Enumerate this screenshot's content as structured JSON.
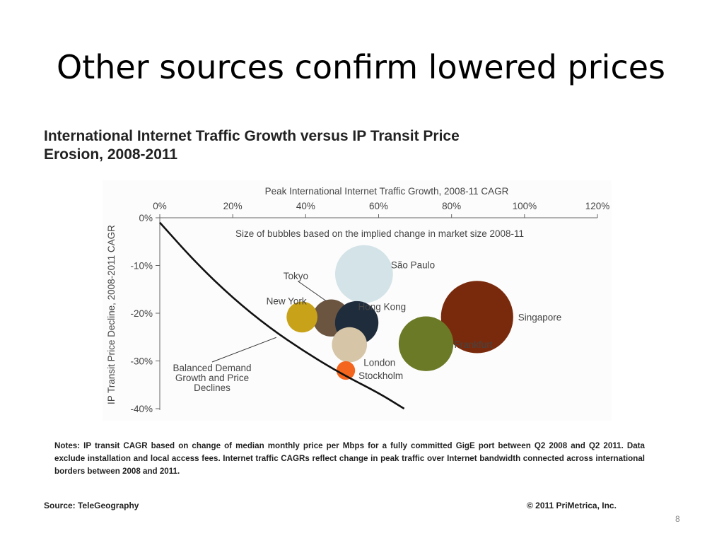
{
  "slide": {
    "title": "Other sources confirm lowered prices",
    "page_number": "8"
  },
  "figure": {
    "heading_line1": "International Internet Traffic Growth versus IP Transit Price",
    "heading_line2": "Erosion, 2008-2011",
    "notes": "Notes: IP transit CAGR based on change of median monthly price per Mbps for a fully committed GigE port between Q2 2008 and Q2 2011. Data exclude installation and local access fees. Internet traffic CAGRs reflect change in peak traffic over Internet bandwidth connected across international borders between 2008 and 2011.",
    "source": "Source: TeleGeography",
    "copyright": "© 2011 PriMetrica, Inc."
  },
  "chart_data": {
    "type": "scatter",
    "subtype": "bubble",
    "xlabel": "Peak International Internet Traffic Growth, 2008-11 CAGR",
    "ylabel": "IP Transit Price Decline, 2008-2011 CAGR",
    "xlim": [
      0,
      120
    ],
    "ylim": [
      -40,
      0
    ],
    "x_axis_position": "top",
    "x_ticks": [
      "0%",
      "20%",
      "40%",
      "60%",
      "80%",
      "100%",
      "120%"
    ],
    "x_tick_values": [
      0,
      20,
      40,
      60,
      80,
      100,
      120
    ],
    "y_ticks": [
      "0%",
      "-10%",
      "-20%",
      "-30%",
      "-40%"
    ],
    "y_tick_values": [
      0,
      -10,
      -20,
      -30,
      -40
    ],
    "grid": false,
    "annotation_size_note": "Size of bubbles based on the implied change in market size 2008-11",
    "points": [
      {
        "name": "São Paulo",
        "x": 56,
        "y": -11.8,
        "size": 5.6,
        "color": "#d3e3e7"
      },
      {
        "name": "Tokyo",
        "x": 47,
        "y": -21.0,
        "size": 3.6,
        "color": "#6b5540"
      },
      {
        "name": "New York",
        "x": 39,
        "y": -20.8,
        "size": 3.0,
        "color": "#c8a218"
      },
      {
        "name": "Hong Kong",
        "x": 54,
        "y": -22.0,
        "size": 4.2,
        "color": "#1f2c3b"
      },
      {
        "name": "Singapore",
        "x": 87,
        "y": -20.8,
        "size": 7.0,
        "color": "#7a2a0c"
      },
      {
        "name": "Frankfurt",
        "x": 73,
        "y": -26.4,
        "size": 5.3,
        "color": "#6b7a26"
      },
      {
        "name": "London",
        "x": 52,
        "y": -26.6,
        "size": 3.4,
        "color": "#d6c5a6"
      },
      {
        "name": "Stockholm",
        "x": 51,
        "y": -32.0,
        "size": 1.8,
        "color": "#f4651d"
      }
    ],
    "curve": {
      "name": "Balanced Demand Growth and Price Declines",
      "label_lines": [
        "Balanced Demand",
        "Growth and Price",
        "Declines"
      ],
      "x": [
        0,
        10,
        20,
        30,
        40,
        50,
        60,
        67
      ],
      "y": [
        -1,
        -9.5,
        -16.8,
        -23,
        -28.2,
        -32.8,
        -36.7,
        -40
      ]
    }
  }
}
